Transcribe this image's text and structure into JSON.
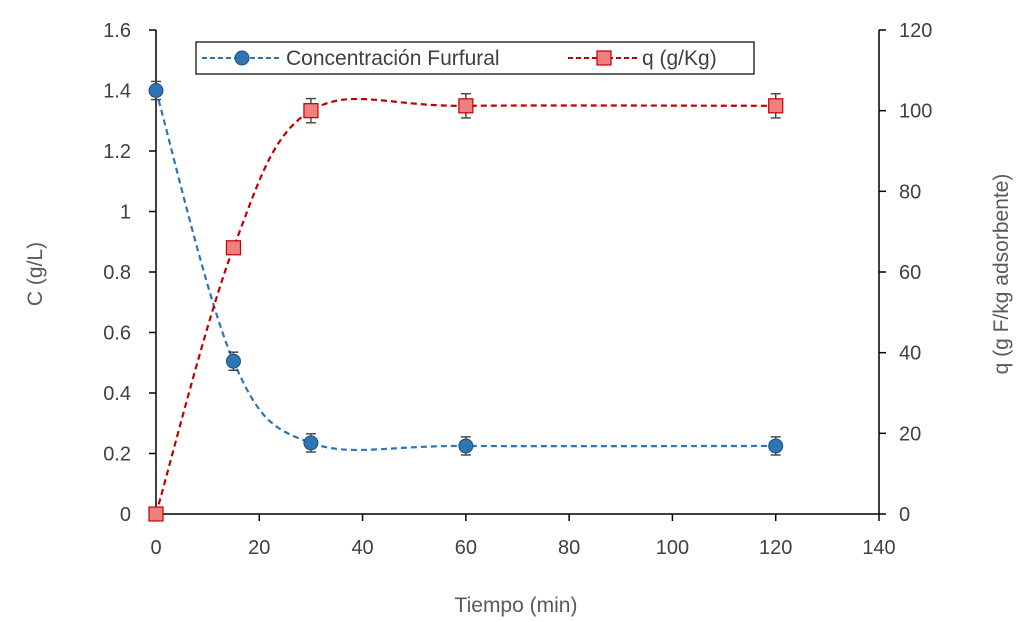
{
  "chart_data": {
    "type": "scatter",
    "x": [
      0,
      15,
      30,
      60,
      120
    ],
    "xlabel": "Tiempo (min)",
    "ylabel": "C (g/L)",
    "y2label": "q (g F/kg adsorbente)",
    "xlim": [
      0,
      140
    ],
    "ylim": [
      0,
      1.6
    ],
    "y2lim": [
      0,
      120
    ],
    "xticks": [
      "0",
      "20",
      "40",
      "60",
      "80",
      "100",
      "120",
      "140"
    ],
    "yticks": [
      "0",
      "0.2",
      "0.4",
      "0.6",
      "0.8",
      "1",
      "1.2",
      "1.4",
      "1.6"
    ],
    "y2ticks": [
      "0",
      "20",
      "40",
      "60",
      "80",
      "100",
      "120"
    ],
    "grid": false,
    "legend_position": "top",
    "series": [
      {
        "name": "Concentración Furfural",
        "axis": "left",
        "marker": "circle",
        "color": "#2E75B6",
        "line": "dashed smooth",
        "values": [
          1.4,
          0.505,
          0.235,
          0.225,
          0.225
        ],
        "error": [
          0.03,
          0.03,
          0.03,
          0.03,
          0.03
        ]
      },
      {
        "name": "q (g/Kg)",
        "axis": "right",
        "marker": "square",
        "color": "#C00000",
        "fill": "#F08080",
        "line": "dashed smooth",
        "values": [
          0,
          66,
          100,
          101.2,
          101.2
        ],
        "error": [
          0.5,
          1.5,
          3,
          3,
          3
        ]
      }
    ]
  }
}
